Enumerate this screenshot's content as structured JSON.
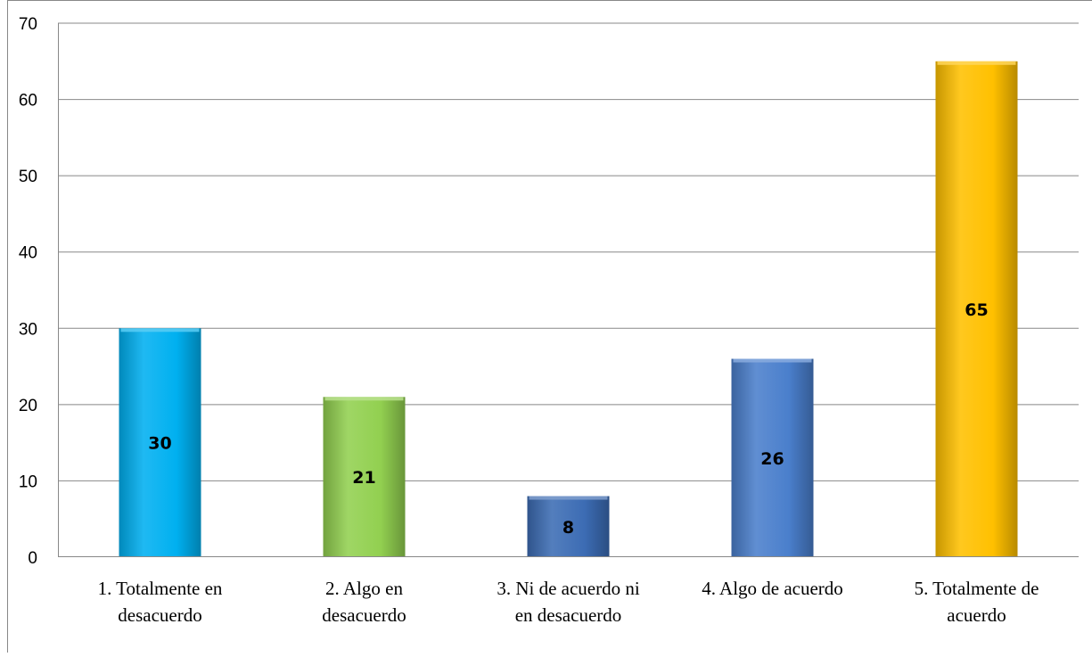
{
  "chart_data": {
    "type": "bar",
    "categories": [
      [
        "1. Totalmente en",
        "desacuerdo"
      ],
      [
        "2. Algo en",
        "desacuerdo"
      ],
      [
        "3. Ni de acuerdo ni",
        "en desacuerdo"
      ],
      [
        "4. Algo de acuerdo"
      ],
      [
        "5. Totalmente de",
        "acuerdo"
      ]
    ],
    "values": [
      30,
      21,
      8,
      26,
      65
    ],
    "data_labels": [
      "30",
      "21",
      "8",
      "26",
      "65"
    ],
    "colors": [
      "#00b0f0",
      "#92d050",
      "#3c6cb4",
      "#4a7fcc",
      "#ffc000"
    ],
    "title": "",
    "xlabel": "",
    "ylabel": "",
    "ylim": [
      0,
      70
    ],
    "yticks": [
      "0",
      "10",
      "20",
      "30",
      "40",
      "50",
      "60",
      "70"
    ],
    "grid": true,
    "legend": "none"
  }
}
